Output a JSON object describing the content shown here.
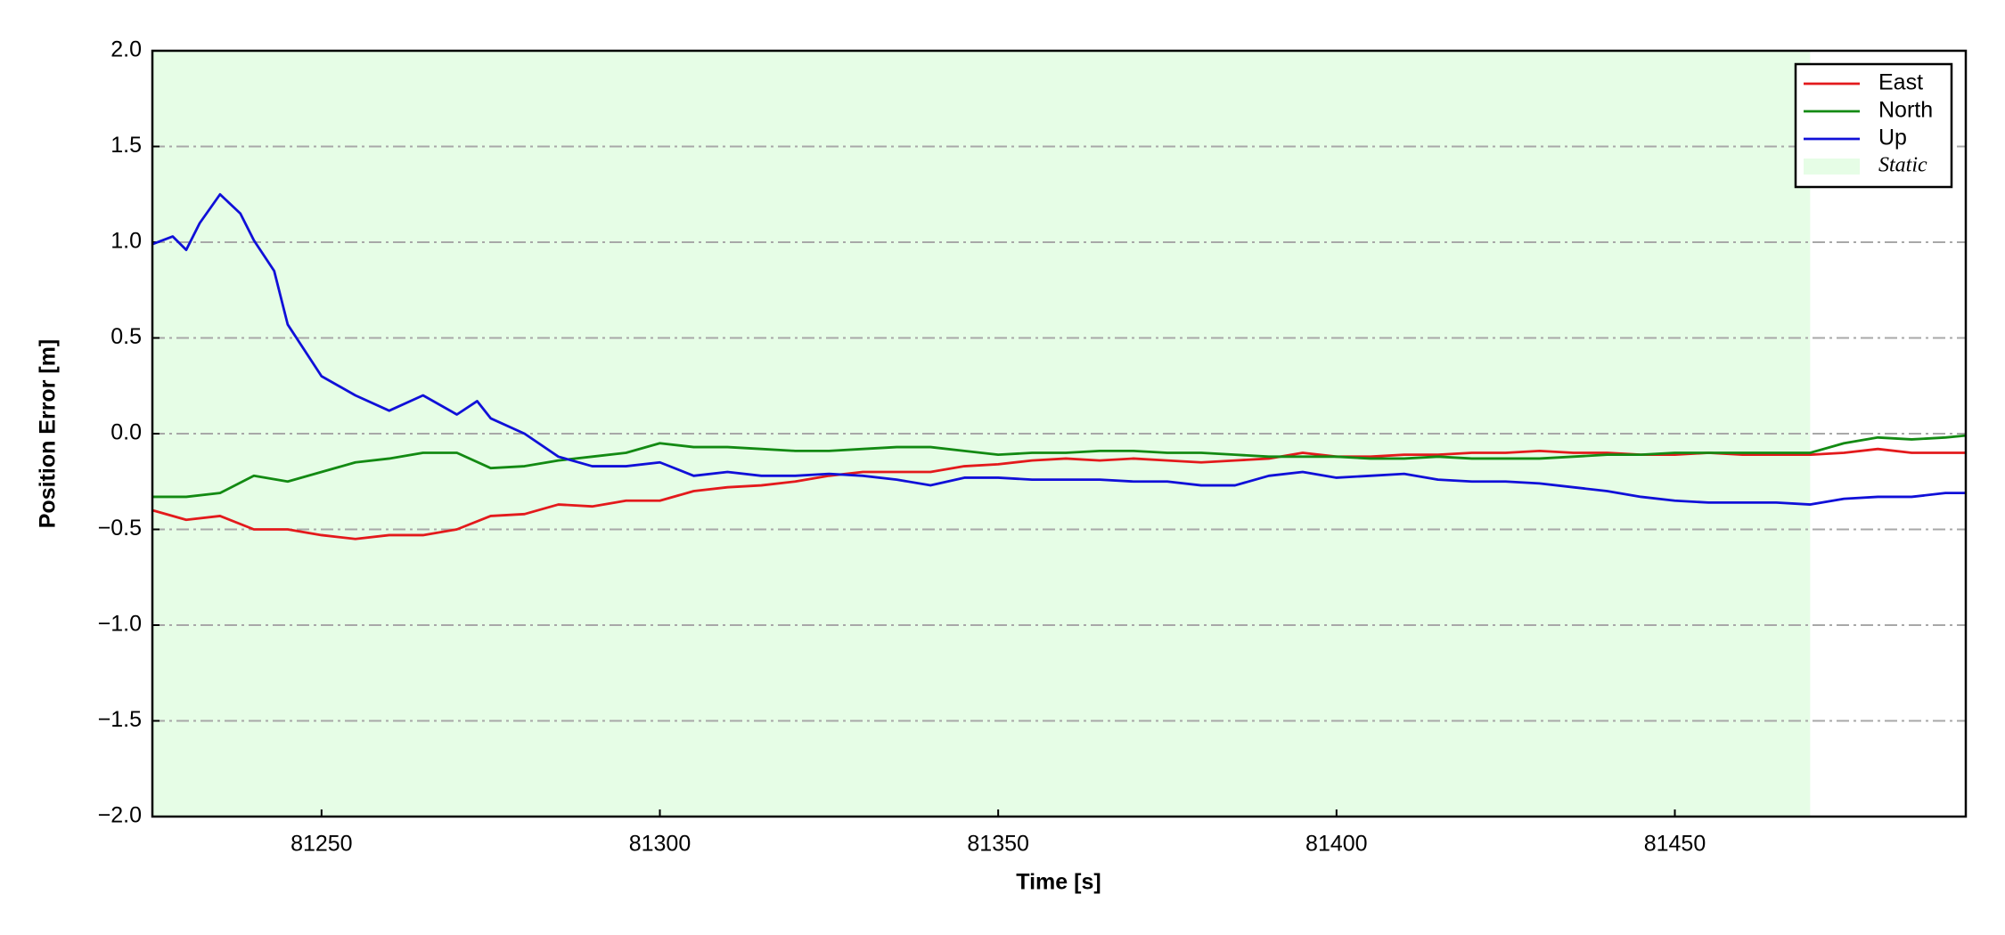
{
  "chart_data": {
    "type": "line",
    "xlabel": "Time [s]",
    "ylabel": "Position Error [m]",
    "xlim": [
      81225,
      81493
    ],
    "ylim": [
      -2,
      2
    ],
    "xticks": [
      81250,
      81300,
      81350,
      81400,
      81450
    ],
    "yticks": [
      {
        "value": -2,
        "label": "−2.0"
      },
      {
        "value": -1.5,
        "label": "−1.5"
      },
      {
        "value": -1,
        "label": "−1.0"
      },
      {
        "value": -0.5,
        "label": "−0.5"
      },
      {
        "value": 0,
        "label": "0.0"
      },
      0.5,
      {
        "value": 1,
        "label": "1.0"
      },
      1.5,
      {
        "value": 2,
        "label": "2.0"
      }
    ],
    "grid": true,
    "legend": "upper right",
    "spans": [
      {
        "name": "Static",
        "color": "#e6fde6",
        "start": 81225,
        "end": 81470
      }
    ],
    "series": [
      {
        "name": "East",
        "color": "#e31a1c",
        "x": [
          81225,
          81230,
          81235,
          81240,
          81245,
          81250,
          81255,
          81260,
          81265,
          81270,
          81275,
          81280,
          81285,
          81290,
          81295,
          81300,
          81305,
          81310,
          81315,
          81320,
          81325,
          81330,
          81335,
          81340,
          81345,
          81350,
          81355,
          81360,
          81365,
          81370,
          81375,
          81380,
          81385,
          81390,
          81395,
          81400,
          81405,
          81410,
          81415,
          81420,
          81425,
          81430,
          81435,
          81440,
          81445,
          81450,
          81455,
          81460,
          81465,
          81470,
          81475,
          81480,
          81485,
          81490,
          81493
        ],
        "values": [
          -0.4,
          -0.45,
          -0.43,
          -0.5,
          -0.5,
          -0.53,
          -0.55,
          -0.53,
          -0.53,
          -0.5,
          -0.43,
          -0.42,
          -0.37,
          -0.38,
          -0.35,
          -0.35,
          -0.3,
          -0.28,
          -0.27,
          -0.25,
          -0.22,
          -0.2,
          -0.2,
          -0.2,
          -0.17,
          -0.16,
          -0.14,
          -0.13,
          -0.14,
          -0.13,
          -0.14,
          -0.15,
          -0.14,
          -0.13,
          -0.1,
          -0.12,
          -0.12,
          -0.11,
          -0.11,
          -0.1,
          -0.1,
          -0.09,
          -0.1,
          -0.1,
          -0.11,
          -0.11,
          -0.1,
          -0.11,
          -0.11,
          -0.11,
          -0.1,
          -0.08,
          -0.1,
          -0.1,
          -0.1
        ]
      },
      {
        "name": "North",
        "color": "#138a13",
        "x": [
          81225,
          81230,
          81235,
          81240,
          81245,
          81250,
          81255,
          81260,
          81265,
          81270,
          81275,
          81280,
          81285,
          81290,
          81295,
          81300,
          81305,
          81310,
          81315,
          81320,
          81325,
          81330,
          81335,
          81340,
          81345,
          81350,
          81355,
          81360,
          81365,
          81370,
          81375,
          81380,
          81385,
          81390,
          81395,
          81400,
          81405,
          81410,
          81415,
          81420,
          81425,
          81430,
          81435,
          81440,
          81445,
          81450,
          81455,
          81460,
          81465,
          81470,
          81475,
          81480,
          81485,
          81490,
          81493
        ],
        "values": [
          -0.33,
          -0.33,
          -0.31,
          -0.22,
          -0.25,
          -0.2,
          -0.15,
          -0.13,
          -0.1,
          -0.1,
          -0.18,
          -0.17,
          -0.14,
          -0.12,
          -0.1,
          -0.05,
          -0.07,
          -0.07,
          -0.08,
          -0.09,
          -0.09,
          -0.08,
          -0.07,
          -0.07,
          -0.09,
          -0.11,
          -0.1,
          -0.1,
          -0.09,
          -0.09,
          -0.1,
          -0.1,
          -0.11,
          -0.12,
          -0.12,
          -0.12,
          -0.13,
          -0.13,
          -0.12,
          -0.13,
          -0.13,
          -0.13,
          -0.12,
          -0.11,
          -0.11,
          -0.1,
          -0.1,
          -0.1,
          -0.1,
          -0.1,
          -0.05,
          -0.02,
          -0.03,
          -0.02,
          -0.01
        ]
      },
      {
        "name": "Up",
        "color": "#1010d8",
        "x": [
          81225,
          81228,
          81230,
          81232,
          81235,
          81238,
          81240,
          81243,
          81245,
          81250,
          81255,
          81260,
          81265,
          81270,
          81273,
          81275,
          81280,
          81285,
          81290,
          81295,
          81300,
          81305,
          81310,
          81315,
          81320,
          81325,
          81330,
          81335,
          81340,
          81345,
          81350,
          81355,
          81360,
          81365,
          81370,
          81375,
          81380,
          81385,
          81390,
          81395,
          81400,
          81405,
          81410,
          81415,
          81420,
          81425,
          81430,
          81435,
          81440,
          81445,
          81450,
          81455,
          81460,
          81465,
          81470,
          81475,
          81480,
          81485,
          81490,
          81493
        ],
        "values": [
          0.99,
          1.03,
          0.96,
          1.1,
          1.25,
          1.15,
          1.01,
          0.85,
          0.57,
          0.3,
          0.2,
          0.12,
          0.2,
          0.1,
          0.17,
          0.08,
          0.0,
          -0.12,
          -0.17,
          -0.17,
          -0.15,
          -0.22,
          -0.2,
          -0.22,
          -0.22,
          -0.21,
          -0.22,
          -0.24,
          -0.27,
          -0.23,
          -0.23,
          -0.24,
          -0.24,
          -0.24,
          -0.25,
          -0.25,
          -0.27,
          -0.27,
          -0.22,
          -0.2,
          -0.23,
          -0.22,
          -0.21,
          -0.24,
          -0.25,
          -0.25,
          -0.26,
          -0.28,
          -0.3,
          -0.33,
          -0.35,
          -0.36,
          -0.36,
          -0.36,
          -0.37,
          -0.34,
          -0.33,
          -0.33,
          -0.31,
          -0.31
        ]
      }
    ]
  }
}
